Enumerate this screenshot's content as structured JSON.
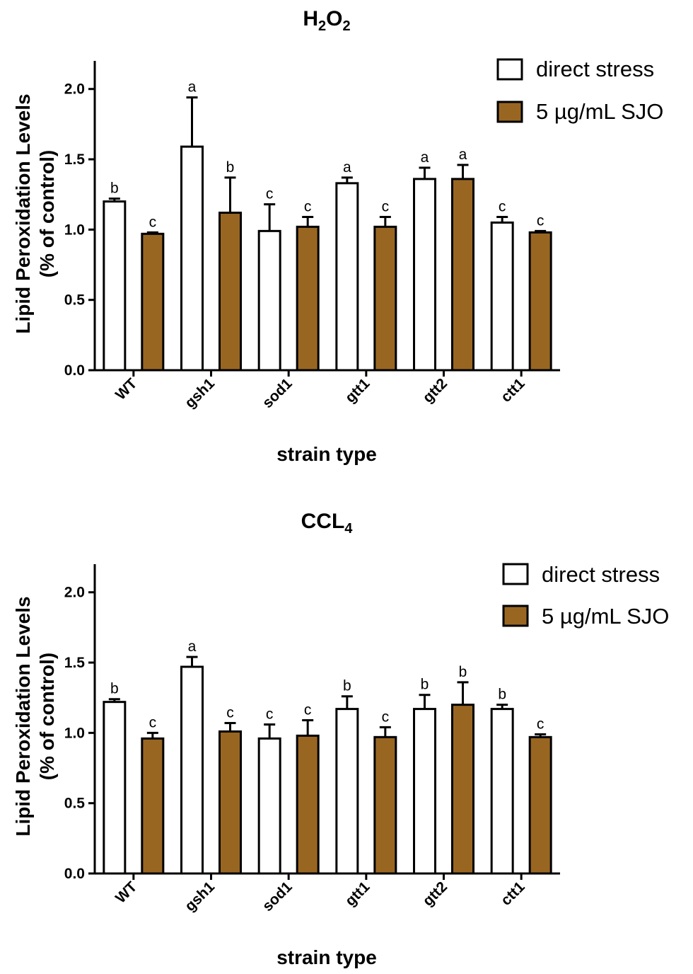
{
  "colors": {
    "direct_stress": "#ffffff",
    "sjo": "#996622",
    "stroke": "#000000"
  },
  "chart_data": [
    {
      "type": "bar",
      "title_main": "H",
      "title_sub1": "2",
      "title_mid": "O",
      "title_sub2": "2",
      "xlabel": "strain type",
      "ylabel_line1": "Lipid Peroxidation Levels",
      "ylabel_line2": "(% of control)",
      "ylim": [
        0,
        2.2
      ],
      "yticks": [
        "0.0",
        "0.5",
        "1.0",
        "1.5",
        "2.0"
      ],
      "categories": [
        "WT",
        "gsh1",
        "sod1",
        "gtt1",
        "gtt2",
        "ctt1"
      ],
      "legend_position": "top-right",
      "series": [
        {
          "name": "direct stress",
          "values": [
            1.2,
            1.59,
            0.99,
            1.33,
            1.36,
            1.05
          ],
          "errors": [
            0.02,
            0.35,
            0.19,
            0.04,
            0.08,
            0.04
          ],
          "letters": [
            "b",
            "a",
            "c",
            "a",
            "a",
            "c"
          ]
        },
        {
          "name": "5 µg/mL SJO",
          "values": [
            0.97,
            1.12,
            1.02,
            1.02,
            1.36,
            0.98
          ],
          "errors": [
            0.01,
            0.25,
            0.07,
            0.07,
            0.1,
            0.01
          ],
          "letters": [
            "c",
            "b",
            "c",
            "c",
            "a",
            "c"
          ]
        }
      ]
    },
    {
      "type": "bar",
      "title_main": "CCL",
      "title_sub1": "4",
      "title_mid": "",
      "title_sub2": "",
      "xlabel": "strain type",
      "ylabel_line1": "Lipid Peroxidation Levels",
      "ylabel_line2": "(% of control)",
      "ylim": [
        0,
        2.2
      ],
      "yticks": [
        "0.0",
        "0.5",
        "1.0",
        "1.5",
        "2.0"
      ],
      "categories": [
        "WT",
        "gsh1",
        "sod1",
        "gtt1",
        "gtt2",
        "ctt1"
      ],
      "legend_position": "top-right",
      "series": [
        {
          "name": "direct stress",
          "values": [
            1.22,
            1.47,
            0.96,
            1.17,
            1.17,
            1.17
          ],
          "errors": [
            0.02,
            0.07,
            0.1,
            0.09,
            0.1,
            0.03
          ],
          "letters": [
            "b",
            "a",
            "c",
            "b",
            "b",
            "b"
          ]
        },
        {
          "name": "5 µg/mL SJO",
          "values": [
            0.96,
            1.01,
            0.98,
            0.97,
            1.2,
            0.97
          ],
          "errors": [
            0.04,
            0.06,
            0.11,
            0.07,
            0.16,
            0.02
          ],
          "letters": [
            "c",
            "c",
            "c",
            "c",
            "b",
            "c"
          ]
        }
      ]
    }
  ]
}
